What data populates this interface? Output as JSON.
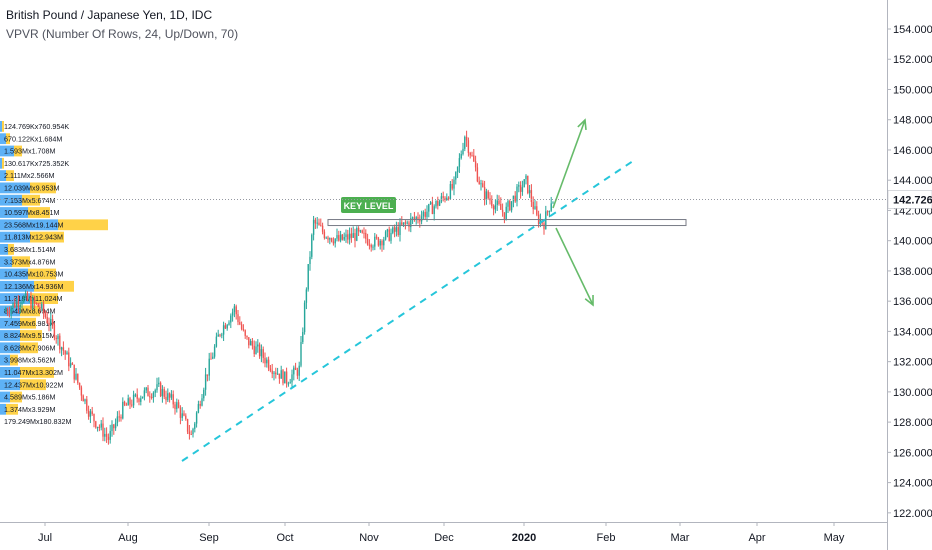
{
  "header": {
    "title": "British Pound / Japanese Yen, 1D, IDC",
    "indicator": "VPVR (Number Of Rows, 24, Up/Down, 70)"
  },
  "price_axis": {
    "labels": [
      "154.000",
      "152.000",
      "150.000",
      "148.000",
      "146.000",
      "144.000",
      "142.000",
      "140.000",
      "138.000",
      "136.000",
      "134.000",
      "132.000",
      "130.000",
      "128.000",
      "126.000",
      "124.000",
      "122.000"
    ],
    "last_price": "142.726",
    "last_price_color": "#131722"
  },
  "time_axis": {
    "labels": [
      "Jul",
      "Aug",
      "Sep",
      "Oct",
      "Nov",
      "Dec",
      "2020",
      "Feb",
      "Mar",
      "Apr",
      "May"
    ]
  },
  "annotations": {
    "key_level_label": "KEY LEVEL",
    "key_level_price": 141.2,
    "trendline_color": "#26c6da",
    "arrow_color": "#66bb6a",
    "key_level_fill": "#4caf50"
  },
  "volume_profile": {
    "labels": [
      "124.769Kx760.954K",
      "670.122Kx1.684M",
      "1.593Mx1.708M",
      "130.617Kx725.352K",
      "2.111Mx2.566M",
      "12.039Mx9.953M",
      "7.153Mx5.674M",
      "10.597Mx8.451M",
      "23.568Mx19.144M",
      "11.813Mx12.943M",
      "3.683Mx1.514M",
      "3.373Mx4.876M",
      "10.435Mx10.753M",
      "12.136Mx14.936M",
      "11.318Mx11.024M",
      "8.949Mx8.694M",
      "7.459Mx6.981M",
      "8.824Mx9.515M",
      "8.628Mx7.906M",
      "3.998Mx3.562M",
      "11.047Mx13.302M",
      "12.437Mx10.922M",
      "4.589Mx5.186M",
      "1.374Mx3.929M",
      "179.249Mx180.832M"
    ],
    "up_color": "#42a5f5",
    "down_color": "#ffca28"
  },
  "chart_data": {
    "type": "candlestick",
    "symbol": "British Pound / Japanese Yen",
    "interval": "1D",
    "ylim": [
      121,
      155.5
    ],
    "up_color": "#26a69a",
    "down_color": "#ef5350",
    "close_path": [
      [
        0,
        135.3
      ],
      [
        10,
        136.2
      ],
      [
        20,
        135.6
      ],
      [
        28,
        134.0
      ],
      [
        38,
        131.5
      ],
      [
        48,
        128.5
      ],
      [
        58,
        126.9
      ],
      [
        66,
        128.9
      ],
      [
        76,
        129.8
      ],
      [
        86,
        130.2
      ],
      [
        96,
        129.1
      ],
      [
        104,
        127.1
      ],
      [
        112,
        131.0
      ],
      [
        120,
        134.0
      ],
      [
        128,
        135.5
      ],
      [
        134,
        133.5
      ],
      [
        142,
        132.6
      ],
      [
        150,
        131.5
      ],
      [
        157,
        130.8
      ],
      [
        164,
        131.5
      ],
      [
        168,
        137.0
      ],
      [
        172,
        141.2
      ],
      [
        178,
        140.5
      ],
      [
        186,
        140.0
      ],
      [
        196,
        140.4
      ],
      [
        206,
        139.9
      ],
      [
        216,
        140.5
      ],
      [
        226,
        141.3
      ],
      [
        232,
        141.7
      ],
      [
        238,
        142.2
      ],
      [
        244,
        142.8
      ],
      [
        250,
        143.6
      ],
      [
        256,
        147.0
      ],
      [
        260,
        145.5
      ],
      [
        266,
        143.2
      ],
      [
        272,
        142.5
      ],
      [
        278,
        141.8
      ],
      [
        284,
        143.0
      ],
      [
        290,
        143.9
      ],
      [
        296,
        141.5
      ],
      [
        300,
        141.2
      ],
      [
        304,
        142.7
      ]
    ]
  }
}
